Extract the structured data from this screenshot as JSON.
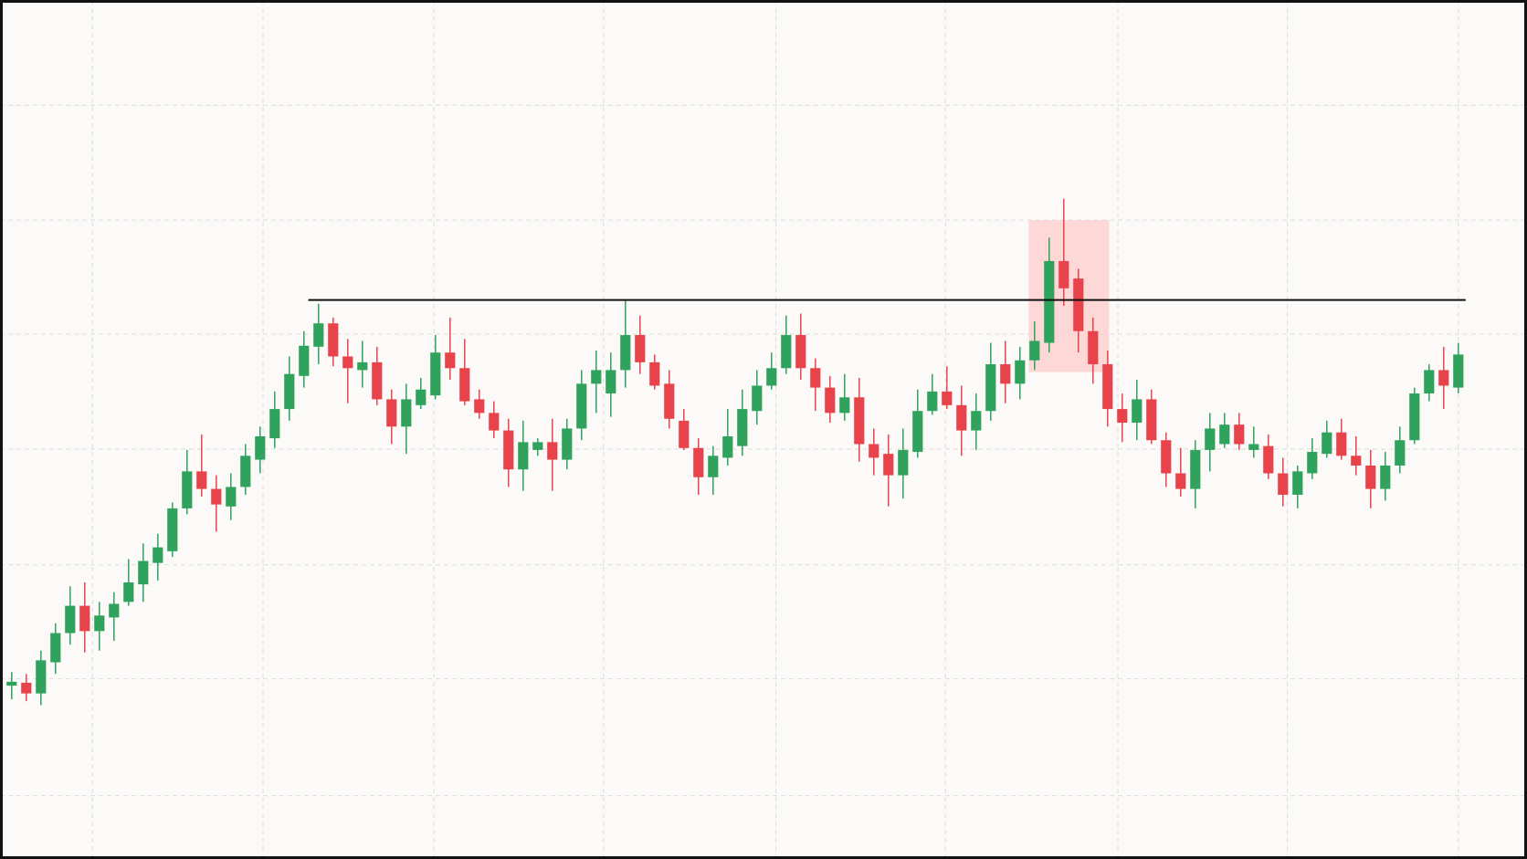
{
  "chart_data": {
    "type": "candlestick",
    "x": [
      0,
      1,
      2,
      3,
      4,
      5,
      6,
      7,
      8,
      9,
      10,
      11,
      12,
      13,
      14,
      15,
      16,
      17,
      18,
      19,
      20,
      21,
      22,
      23,
      24,
      25,
      26,
      27,
      28,
      29,
      30,
      31,
      32,
      33,
      34,
      35,
      36,
      37,
      38,
      39,
      40,
      41,
      42,
      43,
      44,
      45,
      46,
      47,
      48,
      49,
      50,
      51,
      52,
      53,
      54,
      55,
      56,
      57,
      58,
      59,
      60,
      61,
      62,
      63,
      64,
      65,
      66,
      67,
      68,
      69,
      70,
      71,
      72,
      73,
      74,
      75,
      76,
      77,
      78,
      79,
      80,
      81,
      82,
      83,
      84,
      85,
      86,
      87,
      88,
      89,
      90,
      91,
      92,
      93,
      94,
      95,
      96,
      97,
      98,
      99
    ],
    "open": [
      17.8,
      18.1,
      17.0,
      20.2,
      23.2,
      26.0,
      23.4,
      24.8,
      26.4,
      28.2,
      30.4,
      31.6,
      36.0,
      39.8,
      38.0,
      36.2,
      38.2,
      41.0,
      43.2,
      46.2,
      49.6,
      52.6,
      55.0,
      51.6,
      50.2,
      51.0,
      47.2,
      44.4,
      46.6,
      47.6,
      52.0,
      50.4,
      47.2,
      45.8,
      44.0,
      40.0,
      42.0,
      42.8,
      41.0,
      44.2,
      48.8,
      47.8,
      50.2,
      53.8,
      51.0,
      48.8,
      45.0,
      42.2,
      39.2,
      41.2,
      42.4,
      46.0,
      48.6,
      50.4,
      53.8,
      50.4,
      48.4,
      45.8,
      47.4,
      42.6,
      41.6,
      39.4,
      41.8,
      46.0,
      48.0,
      46.6,
      44.0,
      46.0,
      50.8,
      48.8,
      51.2,
      53.0,
      61.4,
      59.6,
      54.2,
      50.8,
      46.2,
      44.8,
      47.2,
      43.0,
      39.6,
      38.0,
      42.0,
      42.6,
      44.6,
      42.0,
      42.4,
      39.6,
      37.4,
      39.6,
      41.6,
      43.8,
      41.4,
      40.4,
      38.0,
      40.4,
      43.0,
      47.8,
      50.2,
      48.4
    ],
    "high": [
      19.2,
      19.0,
      21.4,
      24.2,
      28.0,
      28.4,
      26.4,
      27.4,
      30.8,
      32.4,
      33.4,
      36.6,
      42.0,
      43.6,
      39.4,
      39.6,
      42.6,
      44.4,
      48.0,
      51.6,
      54.2,
      57.0,
      55.6,
      53.4,
      53.2,
      52.6,
      48.2,
      48.8,
      49.4,
      53.8,
      55.6,
      53.4,
      48.2,
      47.0,
      45.2,
      45.0,
      43.2,
      45.2,
      45.2,
      50.2,
      52.2,
      52.0,
      57.4,
      55.8,
      51.8,
      50.2,
      46.2,
      43.2,
      42.4,
      46.2,
      48.2,
      50.2,
      52.0,
      55.8,
      56.0,
      51.4,
      49.6,
      49.8,
      49.4,
      44.2,
      43.6,
      44.2,
      48.2,
      49.8,
      50.6,
      48.6,
      47.8,
      53.0,
      53.2,
      52.6,
      55.2,
      63.8,
      67.8,
      60.6,
      55.6,
      52.2,
      47.8,
      49.2,
      48.2,
      43.8,
      42.2,
      43.0,
      45.8,
      45.8,
      45.8,
      44.4,
      43.6,
      41.2,
      40.4,
      43.2,
      45.0,
      45.2,
      43.4,
      42.0,
      41.8,
      44.4,
      48.4,
      50.8,
      52.6,
      53.0
    ],
    "low": [
      16.4,
      16.2,
      15.8,
      19.0,
      22.0,
      21.2,
      21.4,
      22.4,
      26.0,
      26.4,
      28.6,
      31.0,
      35.4,
      37.2,
      33.6,
      34.8,
      37.4,
      39.6,
      42.2,
      45.0,
      48.4,
      50.8,
      50.6,
      46.8,
      48.4,
      46.6,
      42.6,
      41.6,
      46.2,
      47.2,
      49.2,
      46.6,
      45.2,
      43.2,
      38.2,
      37.8,
      41.4,
      37.8,
      40.0,
      43.0,
      45.8,
      45.4,
      48.4,
      49.8,
      48.2,
      44.2,
      42.0,
      37.4,
      37.4,
      40.4,
      41.4,
      44.6,
      48.2,
      49.8,
      49.2,
      46.0,
      44.8,
      45.0,
      40.8,
      39.4,
      36.2,
      37.0,
      41.2,
      45.6,
      46.2,
      41.4,
      42.0,
      45.0,
      46.8,
      47.2,
      50.2,
      52.0,
      56.8,
      52.0,
      48.8,
      44.4,
      42.8,
      43.0,
      42.6,
      38.2,
      37.2,
      36.0,
      39.8,
      42.2,
      42.0,
      41.2,
      39.0,
      36.2,
      36.0,
      39.0,
      41.2,
      41.0,
      39.4,
      36.0,
      36.8,
      39.6,
      42.6,
      47.0,
      46.2,
      47.8
    ],
    "close": [
      18.2,
      17.0,
      20.4,
      23.2,
      26.0,
      23.4,
      25.0,
      26.2,
      28.4,
      30.6,
      32.0,
      36.0,
      39.8,
      38.0,
      36.4,
      38.2,
      41.4,
      43.4,
      46.2,
      49.8,
      52.7,
      55.0,
      51.6,
      50.4,
      51.0,
      47.2,
      44.4,
      47.2,
      48.2,
      52.0,
      50.4,
      47.0,
      45.8,
      44.0,
      40.0,
      42.8,
      42.8,
      41.0,
      44.2,
      48.8,
      50.2,
      50.2,
      53.8,
      51.0,
      48.6,
      45.2,
      42.2,
      39.2,
      41.4,
      43.4,
      46.2,
      48.6,
      50.4,
      53.8,
      50.4,
      48.4,
      45.8,
      47.4,
      42.6,
      41.2,
      39.4,
      42.0,
      46.0,
      48.0,
      46.6,
      44.0,
      46.0,
      50.8,
      48.8,
      51.2,
      53.2,
      61.4,
      58.6,
      54.2,
      50.8,
      46.2,
      44.8,
      47.2,
      43.0,
      39.6,
      38.0,
      42.0,
      44.2,
      44.6,
      42.6,
      42.6,
      39.6,
      37.4,
      39.8,
      41.8,
      43.8,
      41.4,
      40.4,
      38.0,
      40.4,
      43.0,
      47.8,
      50.2,
      48.6,
      51.8
    ],
    "up_color": "#2fa35c",
    "down_color": "#e8434b",
    "xlim": [
      -0.8,
      103.7
    ],
    "ylim": [
      0,
      88.2
    ],
    "xticks": [
      5.53,
      17.2,
      28.9,
      40.5,
      52.3,
      63.9,
      75.7,
      87.3,
      99.0
    ],
    "yticks": [
      6.5,
      18.5,
      30.2,
      42.1,
      53.9,
      65.6,
      77.4
    ],
    "grid": true,
    "hline": {
      "value": 57.4,
      "x": [
        20.3,
        99.5
      ],
      "color": "#111111"
    },
    "shade": {
      "x": [
        69.6,
        75.1
      ],
      "y": [
        50.0,
        65.6
      ],
      "color": "#ffcccc"
    }
  }
}
